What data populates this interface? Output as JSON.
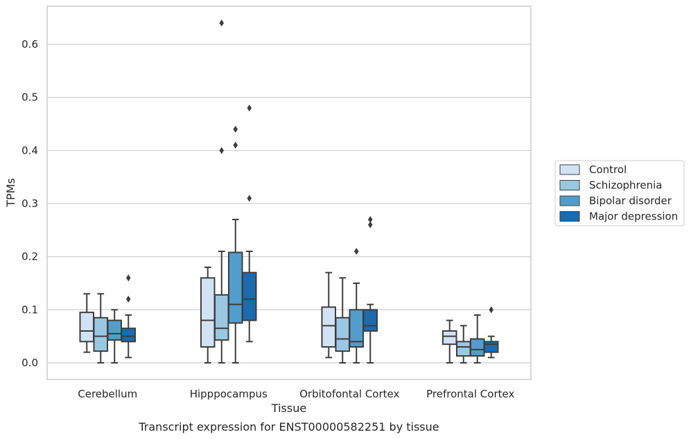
{
  "chart_data": {
    "type": "box",
    "title": "",
    "caption": "Transcript expression for ENST00000582251 by tissue",
    "xlabel": "Tissue",
    "ylabel": "TPMs",
    "ylim": [
      -0.03,
      0.675
    ],
    "yticks": [
      0.0,
      0.1,
      0.2,
      0.3,
      0.4,
      0.5,
      0.6
    ],
    "ytick_labels": [
      "0.0",
      "0.1",
      "0.2",
      "0.3",
      "0.4",
      "0.5",
      "0.6"
    ],
    "grid": "horizontal",
    "legend_position": "right",
    "categories": [
      "Cerebellum",
      "Hipppocampus",
      "Orbitofontal Cortex",
      "Prefrontal Cortex"
    ],
    "series": [
      {
        "name": "Control",
        "color": "#d1e3f3",
        "boxes": [
          {
            "whislo": 0.02,
            "q1": 0.04,
            "median": 0.06,
            "q3": 0.095,
            "whishi": 0.13,
            "fliers": []
          },
          {
            "whislo": 0.0,
            "q1": 0.03,
            "median": 0.08,
            "q3": 0.16,
            "whishi": 0.18,
            "fliers": []
          },
          {
            "whislo": 0.01,
            "q1": 0.03,
            "median": 0.07,
            "q3": 0.105,
            "whishi": 0.17,
            "fliers": []
          },
          {
            "whislo": 0.0,
            "q1": 0.035,
            "median": 0.05,
            "q3": 0.06,
            "whishi": 0.08,
            "fliers": []
          }
        ]
      },
      {
        "name": "Schizophrenia",
        "color": "#9ac8e0",
        "boxes": [
          {
            "whislo": 0.0,
            "q1": 0.022,
            "median": 0.05,
            "q3": 0.085,
            "whishi": 0.13,
            "fliers": []
          },
          {
            "whislo": 0.0,
            "q1": 0.043,
            "median": 0.065,
            "q3": 0.128,
            "whishi": 0.21,
            "fliers": [
              0.4,
              0.64
            ]
          },
          {
            "whislo": 0.0,
            "q1": 0.022,
            "median": 0.045,
            "q3": 0.085,
            "whishi": 0.16,
            "fliers": []
          },
          {
            "whislo": 0.0,
            "q1": 0.013,
            "median": 0.03,
            "q3": 0.04,
            "whishi": 0.07,
            "fliers": []
          }
        ]
      },
      {
        "name": "Bipolar disorder",
        "color": "#529dcc",
        "boxes": [
          {
            "whislo": 0.0,
            "q1": 0.043,
            "median": 0.055,
            "q3": 0.08,
            "whishi": 0.1,
            "fliers": []
          },
          {
            "whislo": 0.0,
            "q1": 0.075,
            "median": 0.11,
            "q3": 0.208,
            "whishi": 0.27,
            "fliers": [
              0.41,
              0.44
            ]
          },
          {
            "whislo": 0.0,
            "q1": 0.03,
            "median": 0.04,
            "q3": 0.1,
            "whishi": 0.15,
            "fliers": [
              0.21
            ]
          },
          {
            "whislo": 0.0,
            "q1": 0.013,
            "median": 0.025,
            "q3": 0.045,
            "whishi": 0.09,
            "fliers": []
          }
        ]
      },
      {
        "name": "Major depression",
        "color": "#1c6aaf",
        "boxes": [
          {
            "whislo": 0.01,
            "q1": 0.04,
            "median": 0.05,
            "q3": 0.065,
            "whishi": 0.09,
            "fliers": [
              0.12,
              0.16
            ]
          },
          {
            "whislo": 0.04,
            "q1": 0.08,
            "median": 0.12,
            "q3": 0.17,
            "whishi": 0.21,
            "fliers": [
              0.31,
              0.48
            ]
          },
          {
            "whislo": 0.0,
            "q1": 0.06,
            "median": 0.07,
            "q3": 0.1,
            "whishi": 0.11,
            "fliers": [
              0.26,
              0.27
            ]
          },
          {
            "whislo": 0.01,
            "q1": 0.02,
            "median": 0.035,
            "q3": 0.04,
            "whishi": 0.05,
            "fliers": [
              0.1
            ]
          }
        ]
      }
    ]
  }
}
